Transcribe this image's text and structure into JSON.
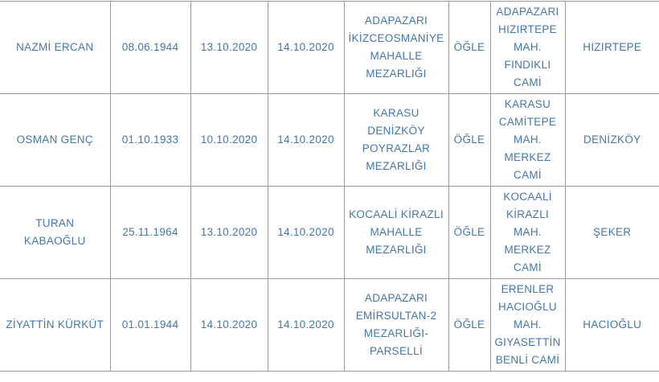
{
  "colors": {
    "text_accent": "#4377ad",
    "grid_border": "#9b9b9b",
    "background": "#ffffff"
  },
  "table": {
    "rows": [
      {
        "name": "NAZMİ ERCAN",
        "birth_date": "08.06.1944",
        "death_date": "13.10.2020",
        "burial_date": "14.10.2020",
        "cemetery": "ADAPAZARI\nİKİZCEOSMANİYE\nMAHALLE\nMEZARLIĞI",
        "prayer_time": "ÖĞLE",
        "mosque": "ADAPAZARI\nHIZIRTEPE\nMAH.\nFINDIKLI\nCAMİ",
        "neighborhood": "HIZIRTEPE"
      },
      {
        "name": "OSMAN GENÇ",
        "birth_date": "01.10.1933",
        "death_date": "10.10.2020",
        "burial_date": "14.10.2020",
        "cemetery": "KARASU\nDENİZKÖY\nPOYRAZLAR\nMEZARLIĞI",
        "prayer_time": "ÖĞLE",
        "mosque": "KARASU\nCAMİTEPE\nMAH.\nMERKEZ\nCAMİ",
        "neighborhood": "DENİZKÖY"
      },
      {
        "name": "TURAN KABAOĞLU",
        "birth_date": "25.11.1964",
        "death_date": "13.10.2020",
        "burial_date": "14.10.2020",
        "cemetery": "KOCAALİ KİRAZLI\nMAHALLE\nMEZARLIĞI",
        "prayer_time": "ÖĞLE",
        "mosque": "KOCAALİ\nKİRAZLI\nMAH.\nMERKEZ\nCAMİ",
        "neighborhood": "ŞEKER"
      },
      {
        "name": "ZİYATTİN KÜRKÜT",
        "birth_date": "01.01.1944",
        "death_date": "14.10.2020",
        "burial_date": "14.10.2020",
        "cemetery": "ADAPAZARI\nEMİRSULTAN-2\nMEZARLIĞI-\nPARSELLİ",
        "prayer_time": "ÖĞLE",
        "mosque": "ERENLER\nHACIOĞLU\nMAH.\nGIYASETTİN\nBENLİ CAMİ",
        "neighborhood": "HACIOĞLU"
      }
    ]
  }
}
